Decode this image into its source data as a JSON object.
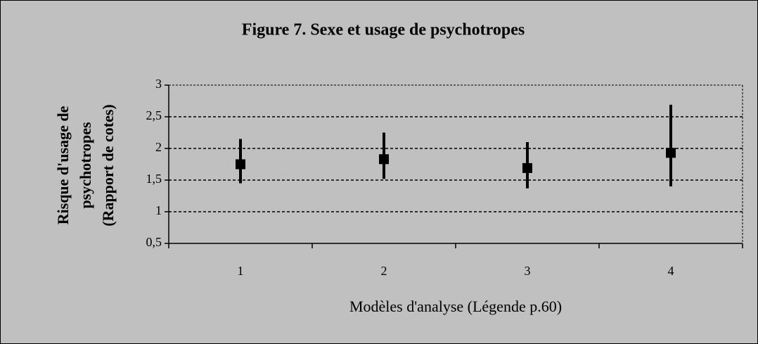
{
  "chart_data": {
    "type": "errorbar",
    "title": "Figure 7. Sexe et usage de psychotropes",
    "x_label": "Modèles d'analyse (Légende p.60)",
    "y_label": [
      "Risque d'usage de",
      "psychotropes",
      "(Rapport de cotes)"
    ],
    "categories": [
      "1",
      "2",
      "3",
      "4"
    ],
    "values": [
      1.75,
      1.83,
      1.69,
      1.93
    ],
    "low": [
      1.45,
      1.52,
      1.37,
      1.4
    ],
    "high": [
      2.15,
      2.25,
      2.1,
      2.69
    ],
    "color": "#000000",
    "ylim": [
      0.5,
      3
    ],
    "yticks": [
      {
        "value": 0.5,
        "label": "0,5"
      },
      1,
      {
        "value": 1.5,
        "label": "1,5"
      },
      2,
      {
        "value": 2.5,
        "label": "2,5"
      },
      3
    ],
    "grid": true
  }
}
